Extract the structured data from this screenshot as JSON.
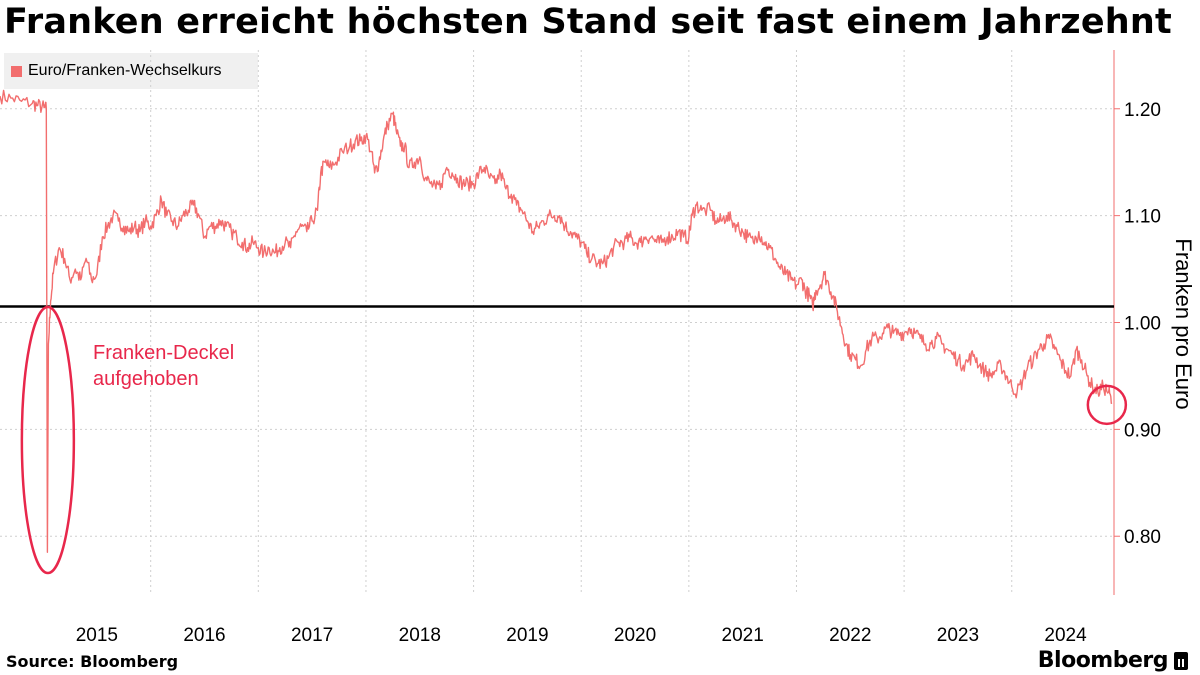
{
  "colors": {
    "series": "#f26e6e",
    "annotation": "#e8274b",
    "reference": "#000000",
    "grid": "#cfcfcf",
    "legend_bg": "#f0f0f0"
  },
  "footer": {
    "source": "Source: Bloomberg",
    "brand": "Bloomberg",
    "brand_icon": "bloomberg-terminal-icon"
  },
  "chart_data": {
    "type": "line",
    "title": "Franken erreicht höchsten Stand seit fast einem Jahrzehnt",
    "ylabel": "Franken pro Euro",
    "xlabel": "",
    "x_tick_labels": [
      "2015",
      "2016",
      "2017",
      "2018",
      "2019",
      "2020",
      "2021",
      "2022",
      "2023",
      "2024"
    ],
    "y_ticks": [
      0.8,
      0.9,
      1.0,
      1.1,
      1.2
    ],
    "y_tick_labels": [
      "0.80",
      "0.90",
      "1.00",
      "1.10",
      "1.20"
    ],
    "xlim": [
      2014.6,
      2024.95
    ],
    "ylim": [
      0.745,
      1.255
    ],
    "y_axis_position": "right",
    "grid": {
      "x": true,
      "y": true,
      "style": "dotted"
    },
    "legend": {
      "position": "top-left",
      "entries": [
        "Euro/Franken-Wechselkurs"
      ]
    },
    "reference_line": {
      "y": 1.015
    },
    "series": [
      {
        "name": "Euro/Franken-Wechselkurs",
        "points": [
          [
            2014.6,
            1.212
          ],
          [
            2014.7,
            1.21
          ],
          [
            2014.8,
            1.207
          ],
          [
            2014.9,
            1.205
          ],
          [
            2014.95,
            1.203
          ],
          [
            2015.01,
            1.201
          ],
          [
            2015.03,
            1.2
          ],
          [
            2015.04,
            0.785
          ],
          [
            2015.05,
            0.98
          ],
          [
            2015.07,
            1.02
          ],
          [
            2015.1,
            1.05
          ],
          [
            2015.15,
            1.07
          ],
          [
            2015.2,
            1.06
          ],
          [
            2015.25,
            1.04
          ],
          [
            2015.3,
            1.05
          ],
          [
            2015.35,
            1.04
          ],
          [
            2015.4,
            1.06
          ],
          [
            2015.45,
            1.04
          ],
          [
            2015.5,
            1.045
          ],
          [
            2015.55,
            1.08
          ],
          [
            2015.6,
            1.09
          ],
          [
            2015.65,
            1.1
          ],
          [
            2015.7,
            1.095
          ],
          [
            2015.75,
            1.09
          ],
          [
            2015.8,
            1.085
          ],
          [
            2015.85,
            1.09
          ],
          [
            2015.9,
            1.085
          ],
          [
            2015.95,
            1.095
          ],
          [
            2016.0,
            1.09
          ],
          [
            2016.05,
            1.1
          ],
          [
            2016.1,
            1.115
          ],
          [
            2016.15,
            1.1
          ],
          [
            2016.2,
            1.095
          ],
          [
            2016.25,
            1.09
          ],
          [
            2016.3,
            1.1
          ],
          [
            2016.35,
            1.105
          ],
          [
            2016.4,
            1.11
          ],
          [
            2016.45,
            1.1
          ],
          [
            2016.5,
            1.08
          ],
          [
            2016.55,
            1.09
          ],
          [
            2016.6,
            1.09
          ],
          [
            2016.65,
            1.095
          ],
          [
            2016.7,
            1.09
          ],
          [
            2016.75,
            1.085
          ],
          [
            2016.8,
            1.08
          ],
          [
            2016.85,
            1.075
          ],
          [
            2016.9,
            1.07
          ],
          [
            2016.95,
            1.075
          ],
          [
            2017.0,
            1.07
          ],
          [
            2017.05,
            1.065
          ],
          [
            2017.1,
            1.07
          ],
          [
            2017.15,
            1.065
          ],
          [
            2017.2,
            1.07
          ],
          [
            2017.25,
            1.075
          ],
          [
            2017.3,
            1.07
          ],
          [
            2017.35,
            1.085
          ],
          [
            2017.4,
            1.09
          ],
          [
            2017.45,
            1.085
          ],
          [
            2017.5,
            1.095
          ],
          [
            2017.55,
            1.105
          ],
          [
            2017.58,
            1.14
          ],
          [
            2017.62,
            1.15
          ],
          [
            2017.66,
            1.145
          ],
          [
            2017.72,
            1.15
          ],
          [
            2017.78,
            1.16
          ],
          [
            2017.85,
            1.165
          ],
          [
            2017.9,
            1.17
          ],
          [
            2017.95,
            1.17
          ],
          [
            2018.0,
            1.175
          ],
          [
            2018.05,
            1.16
          ],
          [
            2018.08,
            1.14
          ],
          [
            2018.12,
            1.15
          ],
          [
            2018.16,
            1.17
          ],
          [
            2018.2,
            1.185
          ],
          [
            2018.25,
            1.195
          ],
          [
            2018.28,
            1.18
          ],
          [
            2018.32,
            1.165
          ],
          [
            2018.36,
            1.165
          ],
          [
            2018.4,
            1.145
          ],
          [
            2018.45,
            1.15
          ],
          [
            2018.5,
            1.155
          ],
          [
            2018.55,
            1.135
          ],
          [
            2018.6,
            1.13
          ],
          [
            2018.65,
            1.125
          ],
          [
            2018.7,
            1.13
          ],
          [
            2018.75,
            1.145
          ],
          [
            2018.8,
            1.14
          ],
          [
            2018.85,
            1.135
          ],
          [
            2018.9,
            1.13
          ],
          [
            2018.95,
            1.13
          ],
          [
            2019.0,
            1.13
          ],
          [
            2019.05,
            1.14
          ],
          [
            2019.1,
            1.145
          ],
          [
            2019.15,
            1.135
          ],
          [
            2019.2,
            1.13
          ],
          [
            2019.25,
            1.14
          ],
          [
            2019.3,
            1.125
          ],
          [
            2019.35,
            1.12
          ],
          [
            2019.4,
            1.11
          ],
          [
            2019.45,
            1.105
          ],
          [
            2019.5,
            1.095
          ],
          [
            2019.55,
            1.085
          ],
          [
            2019.6,
            1.09
          ],
          [
            2019.65,
            1.095
          ],
          [
            2019.7,
            1.1
          ],
          [
            2019.75,
            1.1
          ],
          [
            2019.8,
            1.1
          ],
          [
            2019.85,
            1.09
          ],
          [
            2019.9,
            1.085
          ],
          [
            2019.95,
            1.08
          ],
          [
            2020.0,
            1.075
          ],
          [
            2020.05,
            1.065
          ],
          [
            2020.1,
            1.06
          ],
          [
            2020.15,
            1.055
          ],
          [
            2020.2,
            1.055
          ],
          [
            2020.25,
            1.06
          ],
          [
            2020.3,
            1.07
          ],
          [
            2020.35,
            1.075
          ],
          [
            2020.4,
            1.075
          ],
          [
            2020.45,
            1.08
          ],
          [
            2020.5,
            1.075
          ],
          [
            2020.55,
            1.075
          ],
          [
            2020.6,
            1.08
          ],
          [
            2020.65,
            1.08
          ],
          [
            2020.7,
            1.075
          ],
          [
            2020.75,
            1.075
          ],
          [
            2020.8,
            1.08
          ],
          [
            2020.85,
            1.08
          ],
          [
            2020.9,
            1.085
          ],
          [
            2020.95,
            1.08
          ],
          [
            2021.0,
            1.08
          ],
          [
            2021.03,
            1.1
          ],
          [
            2021.07,
            1.11
          ],
          [
            2021.12,
            1.105
          ],
          [
            2021.2,
            1.105
          ],
          [
            2021.25,
            1.095
          ],
          [
            2021.3,
            1.095
          ],
          [
            2021.35,
            1.1
          ],
          [
            2021.4,
            1.095
          ],
          [
            2021.45,
            1.09
          ],
          [
            2021.5,
            1.085
          ],
          [
            2021.55,
            1.08
          ],
          [
            2021.6,
            1.075
          ],
          [
            2021.65,
            1.085
          ],
          [
            2021.7,
            1.075
          ],
          [
            2021.75,
            1.07
          ],
          [
            2021.8,
            1.06
          ],
          [
            2021.85,
            1.05
          ],
          [
            2021.9,
            1.045
          ],
          [
            2021.95,
            1.04
          ],
          [
            2022.0,
            1.035
          ],
          [
            2022.05,
            1.04
          ],
          [
            2022.08,
            1.03
          ],
          [
            2022.12,
            1.025
          ],
          [
            2022.15,
            1.015
          ],
          [
            2022.18,
            1.03
          ],
          [
            2022.22,
            1.035
          ],
          [
            2022.26,
            1.045
          ],
          [
            2022.3,
            1.035
          ],
          [
            2022.34,
            1.025
          ],
          [
            2022.38,
            1.01
          ],
          [
            2022.42,
            0.995
          ],
          [
            2022.46,
            0.98
          ],
          [
            2022.5,
            0.97
          ],
          [
            2022.55,
            0.965
          ],
          [
            2022.6,
            0.96
          ],
          [
            2022.65,
            0.975
          ],
          [
            2022.7,
            0.985
          ],
          [
            2022.75,
            0.985
          ],
          [
            2022.8,
            0.99
          ],
          [
            2022.85,
            0.995
          ],
          [
            2022.9,
            0.99
          ],
          [
            2022.95,
            0.99
          ],
          [
            2023.0,
            0.99
          ],
          [
            2023.05,
            0.995
          ],
          [
            2023.1,
            0.99
          ],
          [
            2023.15,
            0.985
          ],
          [
            2023.2,
            0.98
          ],
          [
            2023.25,
            0.98
          ],
          [
            2023.3,
            0.985
          ],
          [
            2023.35,
            0.98
          ],
          [
            2023.4,
            0.975
          ],
          [
            2023.45,
            0.97
          ],
          [
            2023.5,
            0.965
          ],
          [
            2023.55,
            0.96
          ],
          [
            2023.6,
            0.965
          ],
          [
            2023.65,
            0.97
          ],
          [
            2023.7,
            0.96
          ],
          [
            2023.75,
            0.955
          ],
          [
            2023.8,
            0.95
          ],
          [
            2023.85,
            0.955
          ],
          [
            2023.9,
            0.96
          ],
          [
            2023.95,
            0.95
          ],
          [
            2024.0,
            0.94
          ],
          [
            2024.05,
            0.935
          ],
          [
            2024.1,
            0.945
          ],
          [
            2024.15,
            0.96
          ],
          [
            2024.2,
            0.965
          ],
          [
            2024.25,
            0.975
          ],
          [
            2024.3,
            0.98
          ],
          [
            2024.35,
            0.985
          ],
          [
            2024.4,
            0.975
          ],
          [
            2024.45,
            0.965
          ],
          [
            2024.5,
            0.955
          ],
          [
            2024.55,
            0.95
          ],
          [
            2024.6,
            0.975
          ],
          [
            2024.65,
            0.965
          ],
          [
            2024.7,
            0.95
          ],
          [
            2024.75,
            0.94
          ],
          [
            2024.8,
            0.935
          ],
          [
            2024.85,
            0.94
          ],
          [
            2024.9,
            0.935
          ],
          [
            2024.93,
            0.925
          ]
        ]
      }
    ],
    "annotations": [
      {
        "text_lines": [
          "Franken-Deckel",
          "aufgehoben"
        ],
        "target": [
          2015.04,
          0.89
        ]
      },
      {
        "target": [
          2024.93,
          0.922
        ]
      }
    ]
  }
}
